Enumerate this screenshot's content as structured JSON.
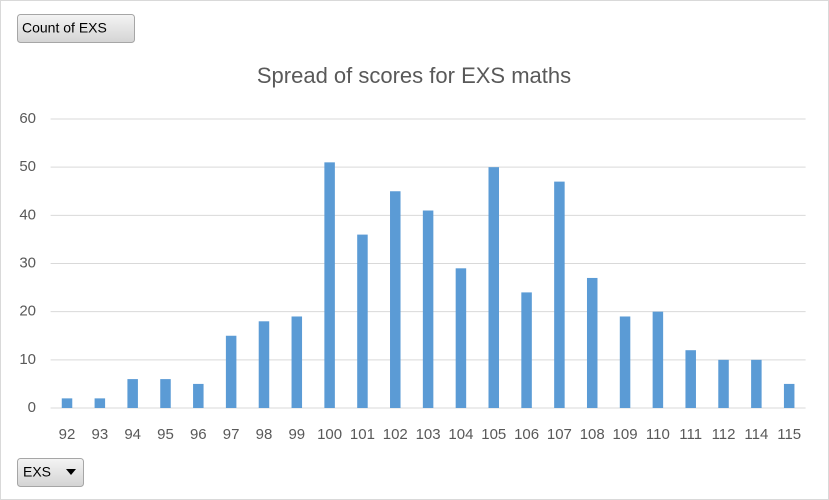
{
  "buttons": {
    "value_field": "Count of EXS",
    "axis_field": "EXS"
  },
  "chart_data": {
    "type": "bar",
    "title": "Spread of scores for EXS maths",
    "categories": [
      "92",
      "93",
      "94",
      "95",
      "96",
      "97",
      "98",
      "99",
      "100",
      "101",
      "102",
      "103",
      "104",
      "105",
      "106",
      "107",
      "108",
      "109",
      "110",
      "111",
      "112",
      "114",
      "115"
    ],
    "values": [
      2,
      2,
      6,
      6,
      5,
      15,
      18,
      19,
      51,
      36,
      45,
      41,
      29,
      50,
      24,
      47,
      27,
      19,
      20,
      12,
      10,
      10,
      5
    ],
    "color": "#5b9bd5",
    "ylim": [
      0,
      60
    ],
    "yticks": [
      0,
      10,
      20,
      30,
      40,
      50,
      60
    ],
    "grid": true
  }
}
